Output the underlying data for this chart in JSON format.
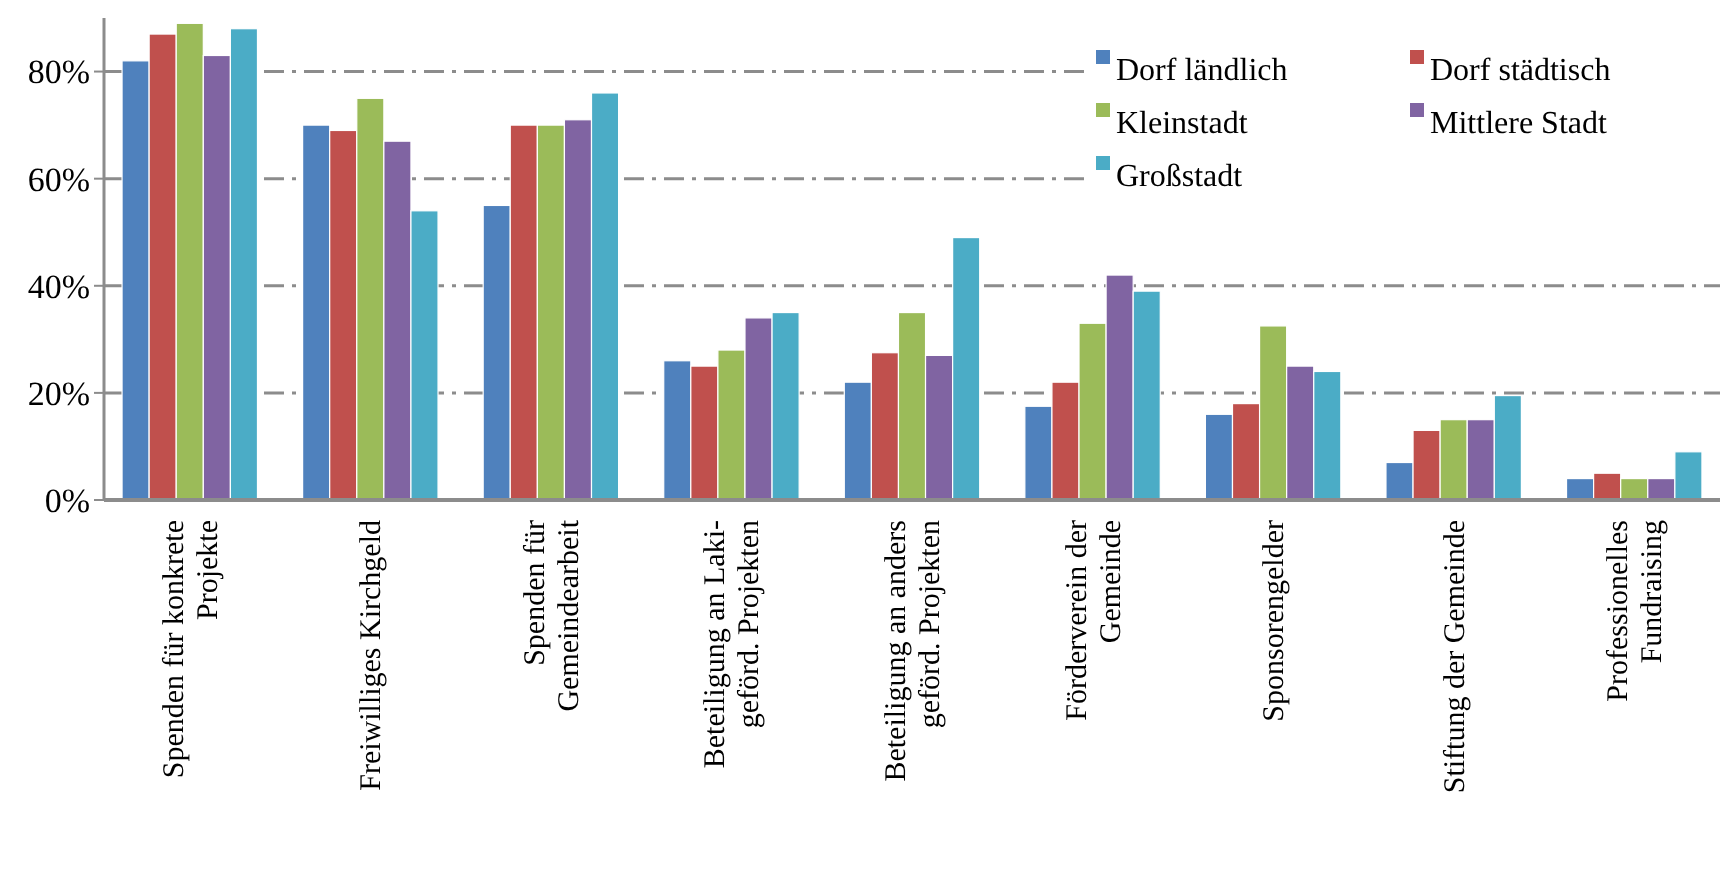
{
  "chart_data": {
    "type": "bar",
    "categories": [
      "Spenden für konkrete\nProjekte",
      "Freiwilliges Kirchgeld",
      "Spenden für\nGemeindearbeit",
      "Beteiligung an Laki-\ngeförd. Projekten",
      "Beteiligung an anders\ngeförd. Projekten",
      "Förderverein der\nGemeinde",
      "Sponsorengelder",
      "Stiftung der Gemeinde",
      "Professionelles\nFundraising"
    ],
    "series": [
      {
        "name": "Dorf ländlich",
        "color": "#4f81bd",
        "values": [
          82,
          70,
          55,
          26,
          22,
          17.5,
          16,
          7,
          4
        ]
      },
      {
        "name": "Dorf städtisch",
        "color": "#c0504d",
        "values": [
          87,
          69,
          70,
          25,
          27.5,
          22,
          18,
          13,
          5
        ]
      },
      {
        "name": "Kleinstadt",
        "color": "#9bbb59",
        "values": [
          89,
          75,
          70,
          28,
          35,
          33,
          32.5,
          15,
          4
        ]
      },
      {
        "name": "Mittlere Stadt",
        "color": "#8064a2",
        "values": [
          83,
          67,
          71,
          34,
          27,
          42,
          25,
          15,
          4
        ]
      },
      {
        "name": "Großstadt",
        "color": "#4bacc6",
        "values": [
          88,
          54,
          76,
          35,
          49,
          39,
          24,
          19.5,
          9
        ]
      }
    ],
    "ylim": [
      0,
      90
    ],
    "yticks": [
      {
        "value": 0,
        "label": "0%"
      },
      {
        "value": 20,
        "label": "20%"
      },
      {
        "value": 40,
        "label": "40%"
      },
      {
        "value": 60,
        "label": "60%"
      },
      {
        "value": 80,
        "label": "80%"
      }
    ],
    "grid": "y",
    "legend": "top right"
  }
}
